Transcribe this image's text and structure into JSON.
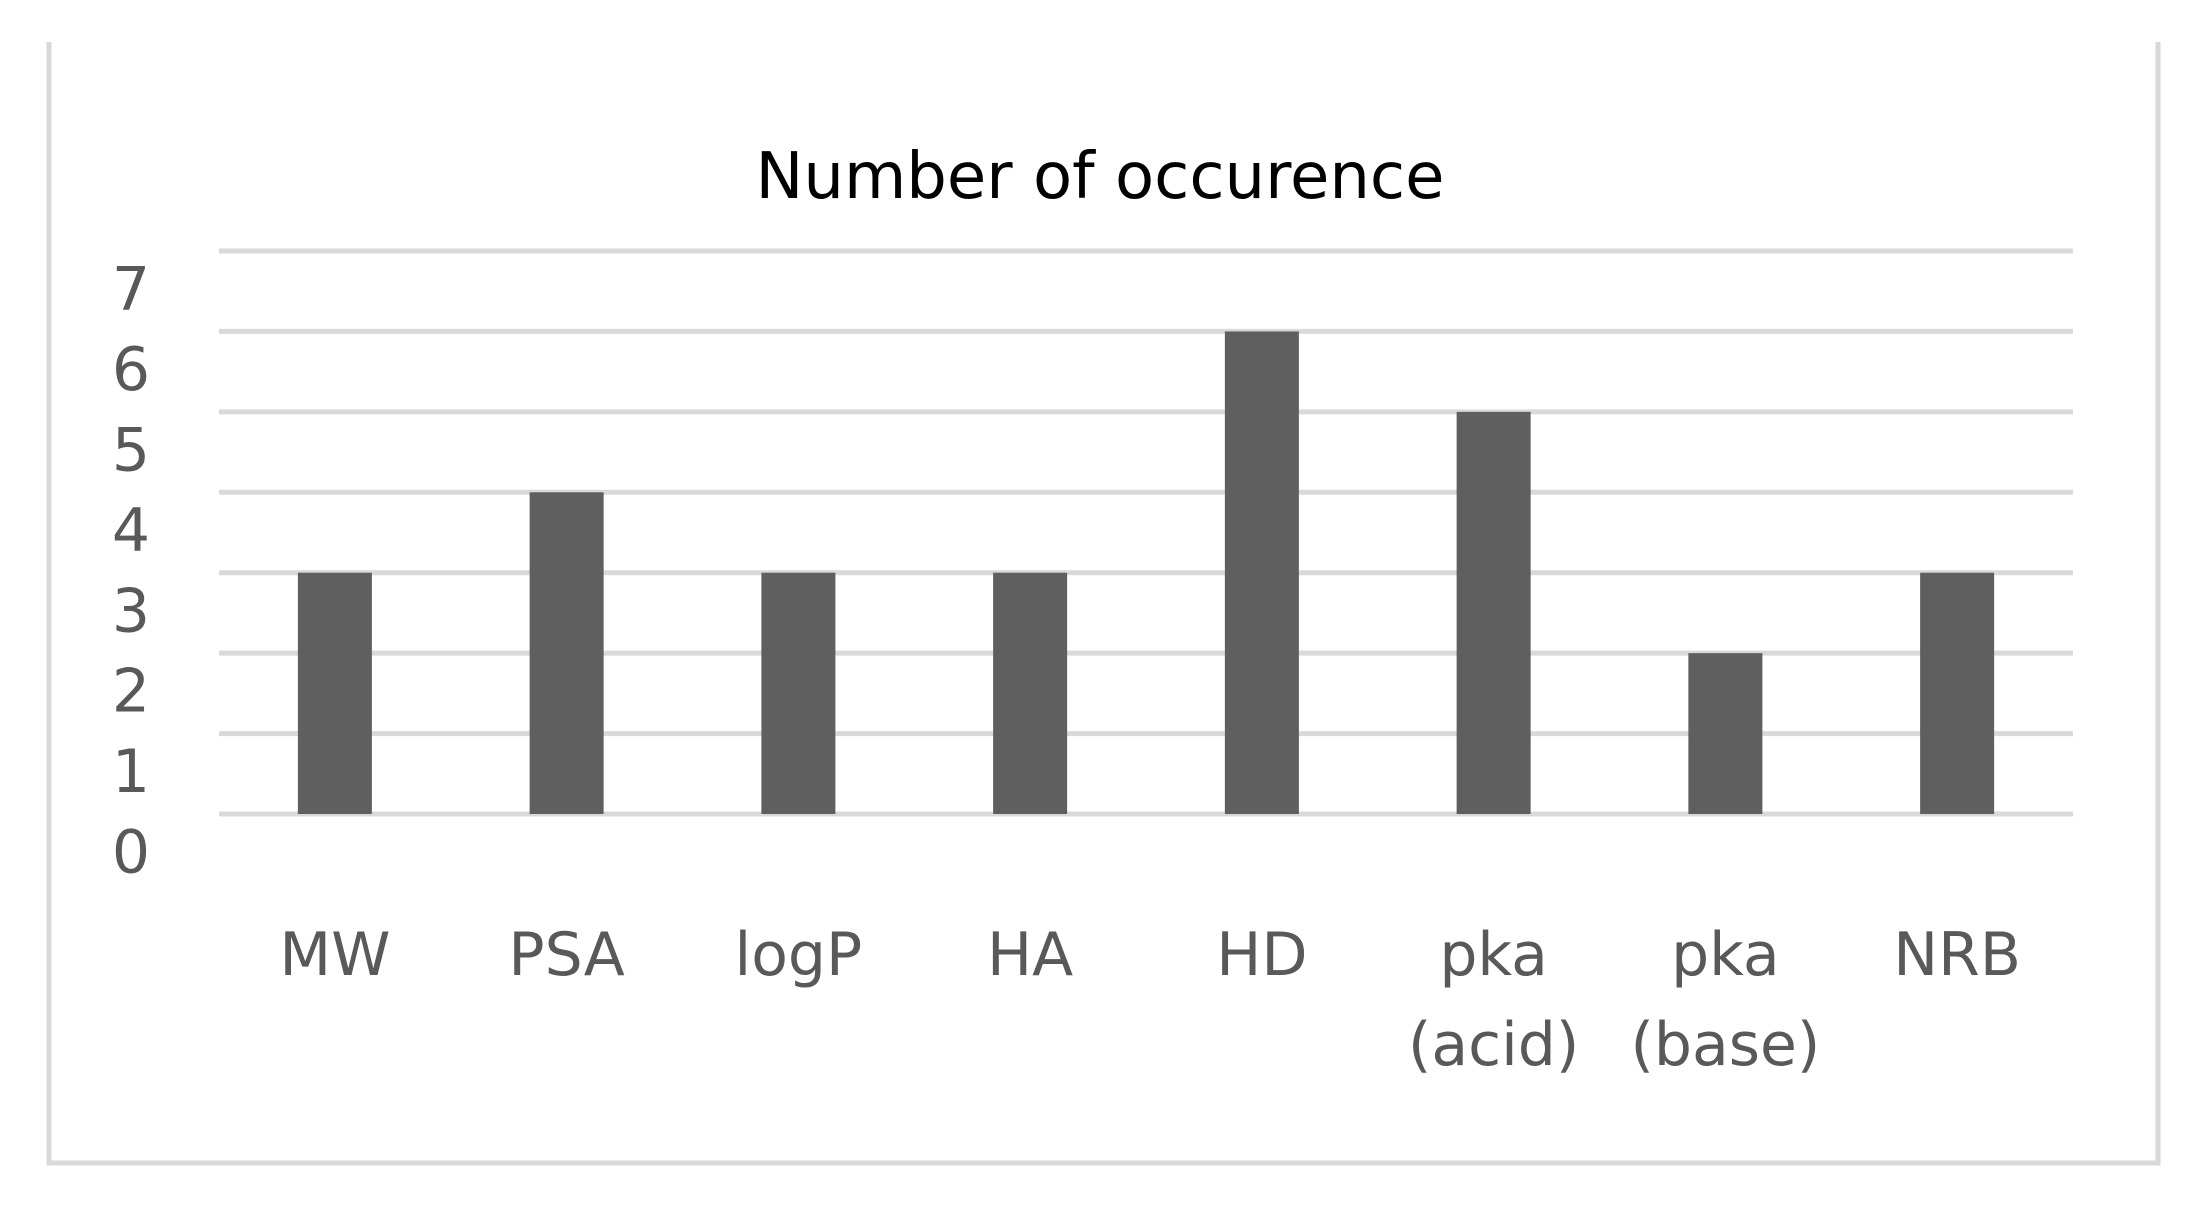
{
  "chart_data": {
    "type": "bar",
    "title": "Number of occurence",
    "categories": [
      "MW",
      "PSA",
      "logP",
      "HA",
      "HD",
      "pka (acid)",
      "pka (base)",
      "NRB"
    ],
    "values": [
      3,
      4,
      3,
      3,
      6,
      5,
      2,
      3
    ],
    "color": "#5f5f5f",
    "ylim": [
      0,
      7
    ],
    "yticks": [
      0,
      1,
      2,
      3,
      4,
      5,
      6,
      7
    ],
    "grid": true
  }
}
